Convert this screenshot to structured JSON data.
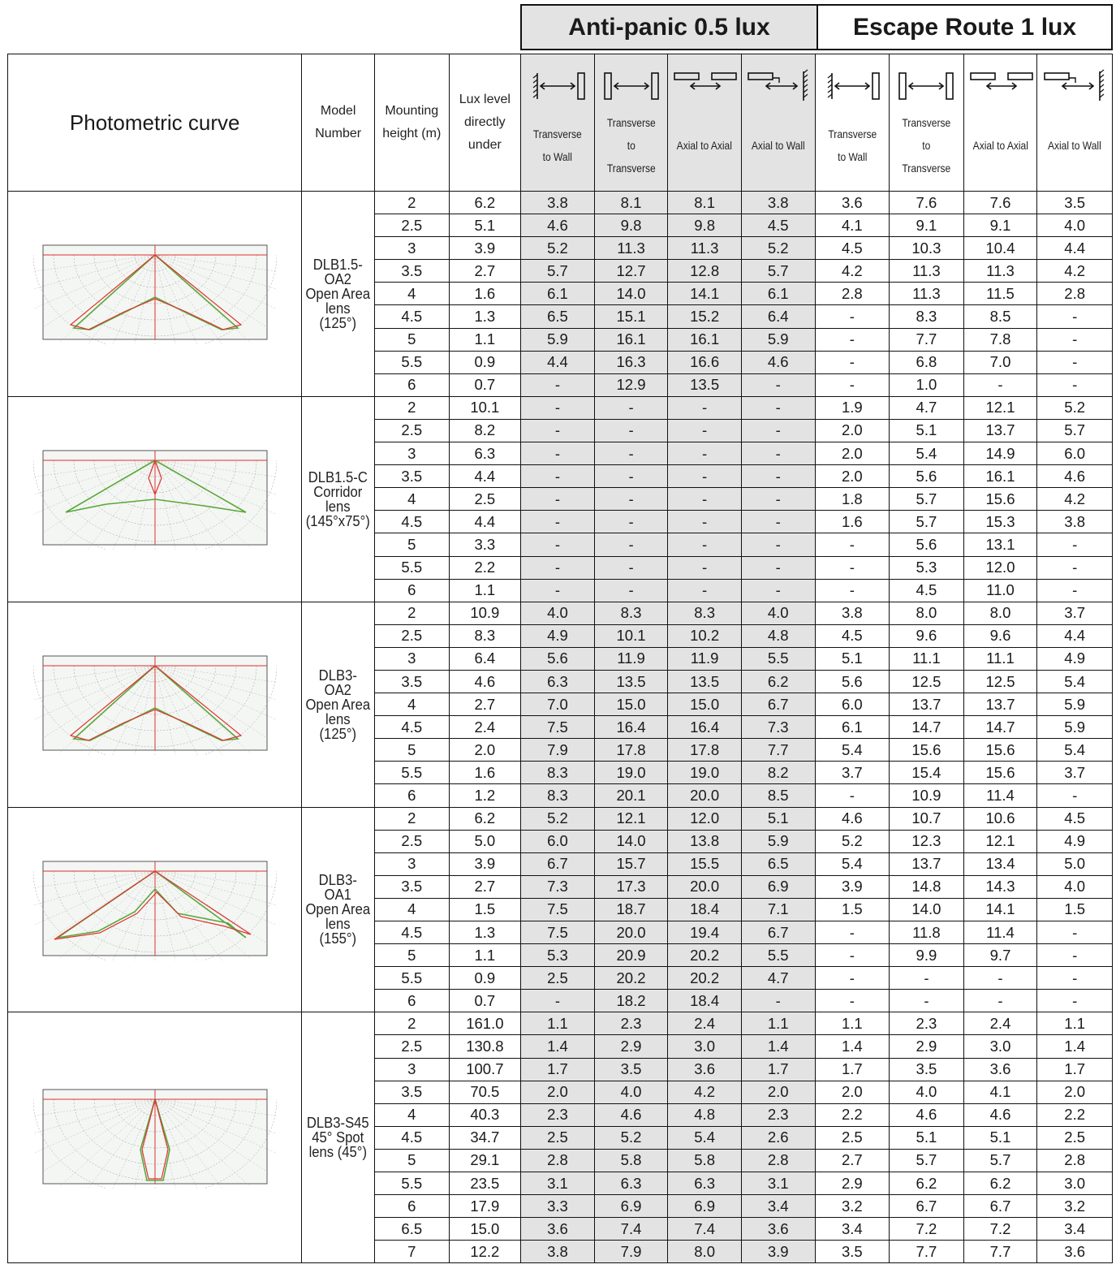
{
  "groups": {
    "anti_panic": "Anti-panic 0.5 lux",
    "escape_route": "Escape Route 1 lux"
  },
  "headers": {
    "photometric_curve": "Photometric curve",
    "model_number": [
      "Model",
      "Number"
    ],
    "mounting_height": [
      "Mounting",
      "height (m)"
    ],
    "lux_level": [
      "Lux level",
      "directly",
      "under"
    ],
    "columns": [
      {
        "icon": "transverse-to-wall-icon",
        "label": [
          "Transverse",
          "to Wall"
        ]
      },
      {
        "icon": "transverse-to-transverse-icon",
        "label": [
          "Transverse",
          "to",
          "Transverse"
        ]
      },
      {
        "icon": "axial-to-axial-icon",
        "label": [
          "Axial to Axial"
        ]
      },
      {
        "icon": "axial-to-wall-icon",
        "label": [
          "Axial to Wall"
        ]
      }
    ]
  },
  "products": [
    {
      "model": [
        "DLB1.5-OA2",
        "Open Area",
        "lens (125°)"
      ],
      "curve": "wide",
      "rows": [
        [
          "2",
          "6.2",
          "3.8",
          "8.1",
          "8.1",
          "3.8",
          "3.6",
          "7.6",
          "7.6",
          "3.5"
        ],
        [
          "2.5",
          "5.1",
          "4.6",
          "9.8",
          "9.8",
          "4.5",
          "4.1",
          "9.1",
          "9.1",
          "4.0"
        ],
        [
          "3",
          "3.9",
          "5.2",
          "11.3",
          "11.3",
          "5.2",
          "4.5",
          "10.3",
          "10.4",
          "4.4"
        ],
        [
          "3.5",
          "2.7",
          "5.7",
          "12.7",
          "12.8",
          "5.7",
          "4.2",
          "11.3",
          "11.3",
          "4.2"
        ],
        [
          "4",
          "1.6",
          "6.1",
          "14.0",
          "14.1",
          "6.1",
          "2.8",
          "11.3",
          "11.5",
          "2.8"
        ],
        [
          "4.5",
          "1.3",
          "6.5",
          "15.1",
          "15.2",
          "6.4",
          "-",
          "8.3",
          "8.5",
          "-"
        ],
        [
          "5",
          "1.1",
          "5.9",
          "16.1",
          "16.1",
          "5.9",
          "-",
          "7.7",
          "7.8",
          "-"
        ],
        [
          "5.5",
          "0.9",
          "4.4",
          "16.3",
          "16.6",
          "4.6",
          "-",
          "6.8",
          "7.0",
          "-"
        ],
        [
          "6",
          "0.7",
          "-",
          "12.9",
          "13.5",
          "-",
          "-",
          "1.0",
          "-",
          "-"
        ]
      ]
    },
    {
      "model": [
        "DLB1.5-C",
        "Corridor",
        "lens",
        "(145°x75°)"
      ],
      "curve": "corridor",
      "rows": [
        [
          "2",
          "10.1",
          "-",
          "-",
          "-",
          "-",
          "1.9",
          "4.7",
          "12.1",
          "5.2"
        ],
        [
          "2.5",
          "8.2",
          "-",
          "-",
          "-",
          "-",
          "2.0",
          "5.1",
          "13.7",
          "5.7"
        ],
        [
          "3",
          "6.3",
          "-",
          "-",
          "-",
          "-",
          "2.0",
          "5.4",
          "14.9",
          "6.0"
        ],
        [
          "3.5",
          "4.4",
          "-",
          "-",
          "-",
          "-",
          "2.0",
          "5.6",
          "16.1",
          "4.6"
        ],
        [
          "4",
          "2.5",
          "-",
          "-",
          "-",
          "-",
          "1.8",
          "5.7",
          "15.6",
          "4.2"
        ],
        [
          "4.5",
          "4.4",
          "-",
          "-",
          "-",
          "-",
          "1.6",
          "5.7",
          "15.3",
          "3.8"
        ],
        [
          "5",
          "3.3",
          "-",
          "-",
          "-",
          "-",
          "-",
          "5.6",
          "13.1",
          "-"
        ],
        [
          "5.5",
          "2.2",
          "-",
          "-",
          "-",
          "-",
          "-",
          "5.3",
          "12.0",
          "-"
        ],
        [
          "6",
          "1.1",
          "-",
          "-",
          "-",
          "-",
          "-",
          "4.5",
          "11.0",
          "-"
        ]
      ]
    },
    {
      "model": [
        "DLB3-OA2",
        "Open Area",
        "lens (125°)"
      ],
      "curve": "wide",
      "rows": [
        [
          "2",
          "10.9",
          "4.0",
          "8.3",
          "8.3",
          "4.0",
          "3.8",
          "8.0",
          "8.0",
          "3.7"
        ],
        [
          "2.5",
          "8.3",
          "4.9",
          "10.1",
          "10.2",
          "4.8",
          "4.5",
          "9.6",
          "9.6",
          "4.4"
        ],
        [
          "3",
          "6.4",
          "5.6",
          "11.9",
          "11.9",
          "5.5",
          "5.1",
          "11.1",
          "11.1",
          "4.9"
        ],
        [
          "3.5",
          "4.6",
          "6.3",
          "13.5",
          "13.5",
          "6.2",
          "5.6",
          "12.5",
          "12.5",
          "5.4"
        ],
        [
          "4",
          "2.7",
          "7.0",
          "15.0",
          "15.0",
          "6.7",
          "6.0",
          "13.7",
          "13.7",
          "5.9"
        ],
        [
          "4.5",
          "2.4",
          "7.5",
          "16.4",
          "16.4",
          "7.3",
          "6.1",
          "14.7",
          "14.7",
          "5.9"
        ],
        [
          "5",
          "2.0",
          "7.9",
          "17.8",
          "17.8",
          "7.7",
          "5.4",
          "15.6",
          "15.6",
          "5.4"
        ],
        [
          "5.5",
          "1.6",
          "8.3",
          "19.0",
          "19.0",
          "8.2",
          "3.7",
          "15.4",
          "15.6",
          "3.7"
        ],
        [
          "6",
          "1.2",
          "8.3",
          "20.1",
          "20.0",
          "8.5",
          "-",
          "10.9",
          "11.4",
          "-"
        ]
      ]
    },
    {
      "model": [
        "DLB3-OA1",
        "Open Area",
        "lens (155°)"
      ],
      "curve": "wider",
      "rows": [
        [
          "2",
          "6.2",
          "5.2",
          "12.1",
          "12.0",
          "5.1",
          "4.6",
          "10.7",
          "10.6",
          "4.5"
        ],
        [
          "2.5",
          "5.0",
          "6.0",
          "14.0",
          "13.8",
          "5.9",
          "5.2",
          "12.3",
          "12.1",
          "4.9"
        ],
        [
          "3",
          "3.9",
          "6.7",
          "15.7",
          "15.5",
          "6.5",
          "5.4",
          "13.7",
          "13.4",
          "5.0"
        ],
        [
          "3.5",
          "2.7",
          "7.3",
          "17.3",
          "20.0",
          "6.9",
          "3.9",
          "14.8",
          "14.3",
          "4.0"
        ],
        [
          "4",
          "1.5",
          "7.5",
          "18.7",
          "18.4",
          "7.1",
          "1.5",
          "14.0",
          "14.1",
          "1.5"
        ],
        [
          "4.5",
          "1.3",
          "7.5",
          "20.0",
          "19.4",
          "6.7",
          "-",
          "11.8",
          "11.4",
          "-"
        ],
        [
          "5",
          "1.1",
          "5.3",
          "20.9",
          "20.2",
          "5.5",
          "-",
          "9.9",
          "9.7",
          "-"
        ],
        [
          "5.5",
          "0.9",
          "2.5",
          "20.2",
          "20.2",
          "4.7",
          "-",
          "-",
          "-",
          "-"
        ],
        [
          "6",
          "0.7",
          "-",
          "18.2",
          "18.4",
          "-",
          "-",
          "-",
          "-",
          "-"
        ]
      ]
    },
    {
      "model": [
        "DLB3-S45",
        "45° Spot",
        "lens (45°)"
      ],
      "curve": "spot",
      "rows": [
        [
          "2",
          "161.0",
          "1.1",
          "2.3",
          "2.4",
          "1.1",
          "1.1",
          "2.3",
          "2.4",
          "1.1"
        ],
        [
          "2.5",
          "130.8",
          "1.4",
          "2.9",
          "3.0",
          "1.4",
          "1.4",
          "2.9",
          "3.0",
          "1.4"
        ],
        [
          "3",
          "100.7",
          "1.7",
          "3.5",
          "3.6",
          "1.7",
          "1.7",
          "3.5",
          "3.6",
          "1.7"
        ],
        [
          "3.5",
          "70.5",
          "2.0",
          "4.0",
          "4.2",
          "2.0",
          "2.0",
          "4.0",
          "4.1",
          "2.0"
        ],
        [
          "4",
          "40.3",
          "2.3",
          "4.6",
          "4.8",
          "2.3",
          "2.2",
          "4.6",
          "4.6",
          "2.2"
        ],
        [
          "4.5",
          "34.7",
          "2.5",
          "5.2",
          "5.4",
          "2.6",
          "2.5",
          "5.1",
          "5.1",
          "2.5"
        ],
        [
          "5",
          "29.1",
          "2.8",
          "5.8",
          "5.8",
          "2.8",
          "2.7",
          "5.7",
          "5.7",
          "2.8"
        ],
        [
          "5.5",
          "23.5",
          "3.1",
          "6.3",
          "6.3",
          "3.1",
          "2.9",
          "6.2",
          "6.2",
          "3.0"
        ],
        [
          "6",
          "17.9",
          "3.3",
          "6.9",
          "6.9",
          "3.4",
          "3.2",
          "6.7",
          "6.7",
          "3.2"
        ],
        [
          "6.5",
          "15.0",
          "3.6",
          "7.4",
          "7.4",
          "3.6",
          "3.4",
          "7.2",
          "7.2",
          "3.4"
        ],
        [
          "7",
          "12.2",
          "3.8",
          "7.9",
          "8.0",
          "3.9",
          "3.5",
          "7.7",
          "7.7",
          "3.6"
        ]
      ]
    }
  ]
}
